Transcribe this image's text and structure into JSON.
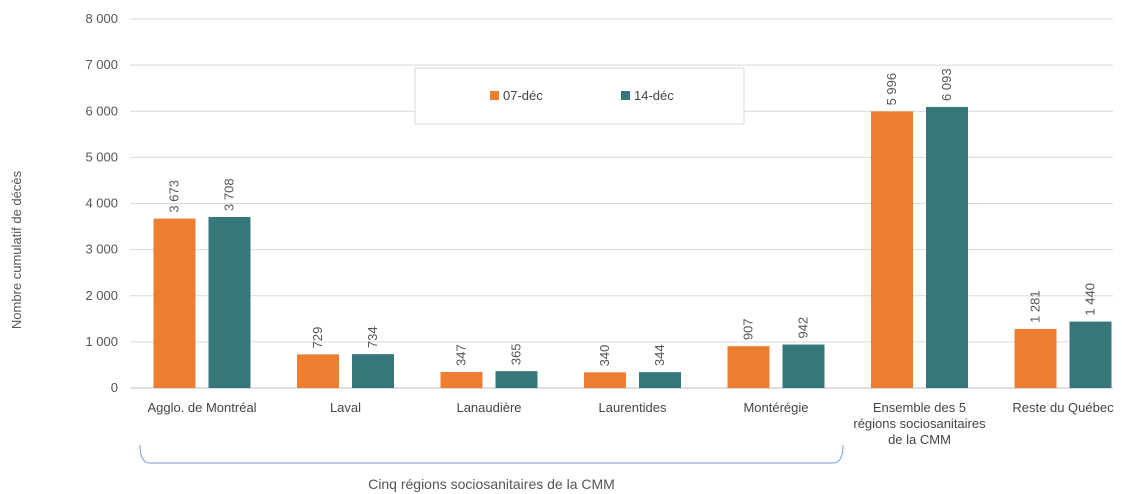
{
  "chart_data": {
    "type": "bar",
    "title": "",
    "xlabel": "",
    "ylabel": "Nombre cumulatif de décès",
    "ylim": [
      0,
      8000
    ],
    "yticks": [
      0,
      1000,
      2000,
      3000,
      4000,
      5000,
      6000,
      7000,
      8000
    ],
    "ytick_labels": [
      "0",
      "1 000",
      "2 000",
      "3 000",
      "4 000",
      "5 000",
      "6 000",
      "7 000",
      "8 000"
    ],
    "grid": true,
    "legend_position": "top-center",
    "categories": [
      [
        "Agglo. de Montréal"
      ],
      [
        "Laval"
      ],
      [
        "Lanaudière"
      ],
      [
        "Laurentides"
      ],
      [
        "Montérégie"
      ],
      [
        "Ensemble des 5",
        "régions sociosanitaires",
        "de la CMM"
      ],
      [
        "Reste du Québec"
      ]
    ],
    "series": [
      {
        "name": "07-déc",
        "color": "#ED7D31",
        "values": [
          3673,
          729,
          347,
          340,
          907,
          5996,
          1281
        ],
        "labels": [
          "3 673",
          "729",
          "347",
          "340",
          "907",
          "5 996",
          "1 281"
        ]
      },
      {
        "name": "14-déc",
        "color": "#37767A",
        "values": [
          3708,
          734,
          365,
          344,
          942,
          6093,
          1440
        ],
        "labels": [
          "3 708",
          "734",
          "365",
          "344",
          "942",
          "6 093",
          "1 440"
        ]
      }
    ],
    "bracket": {
      "caption": "Cinq régions sociosanitaires de la CMM",
      "from_category": 0,
      "to_category": 4
    }
  }
}
